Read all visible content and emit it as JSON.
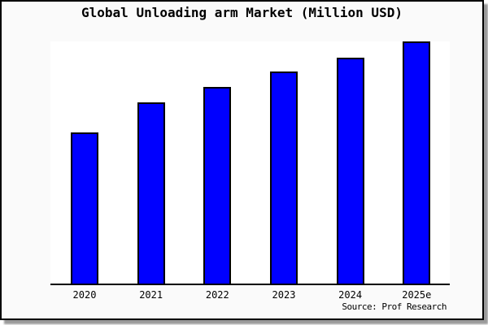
{
  "title": "Global Unloading arm Market (Million USD)",
  "source_note": "Source: Prof Research",
  "colors": {
    "bar_fill": "#0000FF",
    "bar_border": "#000000",
    "card_bg": "#FAFAFA",
    "plot_bg": "#FFFFFF",
    "axis": "#000000",
    "shadow": "#9A9A9A",
    "text": "#000000"
  },
  "chart_data": {
    "type": "bar",
    "title": "Global Unloading arm Market (Million USD)",
    "categories": [
      "2020",
      "2021",
      "2022",
      "2023",
      "2024",
      "2025e"
    ],
    "values": [
      62.5,
      75.1,
      81.3,
      87.7,
      93.6,
      100
    ],
    "value_note": "no y-axis shown; values estimated relative to 2025e = 100",
    "xlabel": "",
    "ylabel": "",
    "ylim": [
      0,
      100.5
    ],
    "grid": false,
    "legend": false,
    "source": "Source: Prof Research"
  }
}
